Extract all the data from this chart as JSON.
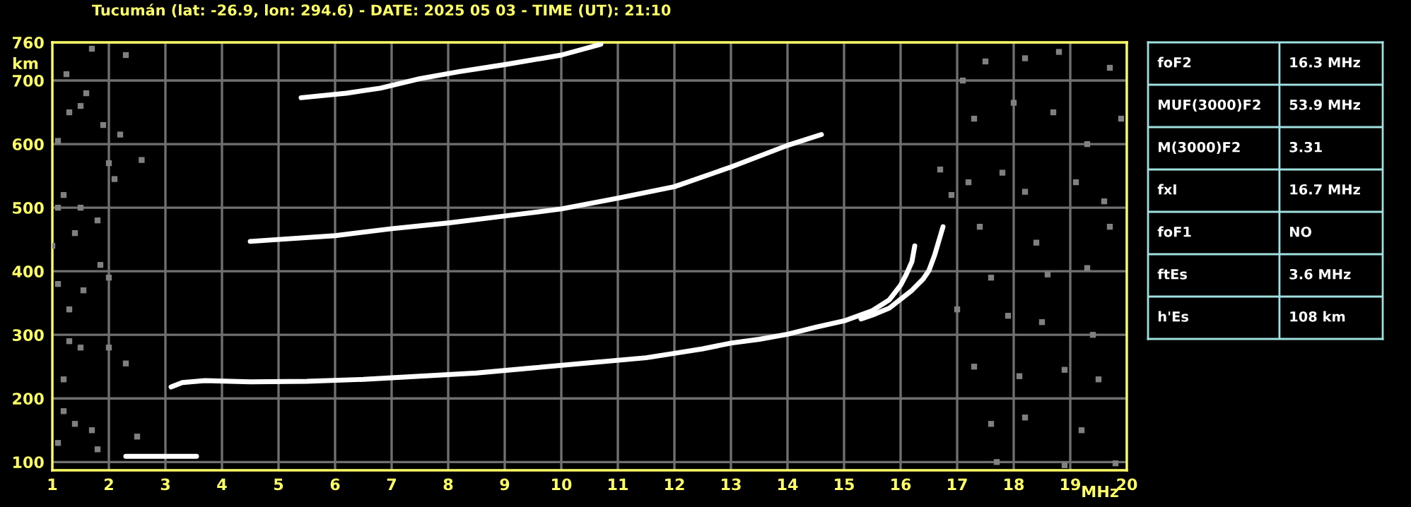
{
  "chart_data": [
    {
      "type": "scatter",
      "title": "Tucumán (lat: -26.9, lon: 294.6) - DATE: 2025 05 03 - TIME (UT): 21:10",
      "xlabel": "MHz",
      "ylabel": "km",
      "xlim": [
        1,
        20
      ],
      "xticks": [
        1,
        2,
        3,
        4,
        5,
        6,
        7,
        8,
        9,
        10,
        11,
        12,
        13,
        14,
        15,
        16,
        17,
        18,
        19,
        20
      ],
      "ylim": [
        87,
        760
      ],
      "yticks": [
        100,
        200,
        300,
        400,
        500,
        600,
        700,
        760
      ],
      "grid": true,
      "legend": false,
      "series": [
        {
          "type": "line",
          "marker": "none",
          "color": "#ffffff",
          "x": [
            2.3,
            2.6,
            2.9,
            3.2,
            3.55
          ],
          "values": [
            109,
            109,
            109,
            109,
            109
          ]
        },
        {
          "type": "line",
          "marker": "none",
          "color": "#ffffff",
          "x": [
            3.1,
            3.3,
            3.7,
            4.5,
            5.5,
            6.5,
            7.5,
            8.5,
            9.5,
            10.5,
            11.5,
            12.0,
            12.5,
            13.0,
            13.5,
            14.0,
            14.5,
            15.0,
            15.5,
            15.8,
            16.0,
            16.1,
            16.2,
            16.25
          ],
          "values": [
            218,
            225,
            228,
            226,
            227,
            230,
            235,
            240,
            248,
            256,
            264,
            271,
            278,
            287,
            293,
            301,
            312,
            322,
            338,
            355,
            378,
            395,
            415,
            440
          ]
        },
        {
          "type": "line",
          "marker": "none",
          "color": "#ffffff",
          "x": [
            15.3,
            15.5,
            15.8,
            16.0,
            16.2,
            16.4,
            16.5,
            16.6,
            16.7,
            16.75
          ],
          "values": [
            325,
            331,
            342,
            356,
            370,
            388,
            401,
            425,
            455,
            470
          ]
        },
        {
          "type": "line",
          "marker": "none",
          "color": "#ffffff",
          "x": [
            4.5,
            5.0,
            6.0,
            7.0,
            8.0,
            9.0,
            10.0,
            11.0,
            12.0,
            13.0,
            14.0,
            14.6
          ],
          "values": [
            447,
            450,
            456,
            467,
            476,
            487,
            498,
            515,
            533,
            564,
            598,
            615
          ]
        },
        {
          "type": "line",
          "marker": "none",
          "color": "#ffffff",
          "x": [
            5.4,
            6.2,
            6.8,
            7.5,
            8.2,
            9.0,
            10.0,
            10.7
          ],
          "values": [
            673,
            680,
            688,
            703,
            714,
            725,
            740,
            757
          ]
        },
        {
          "marker": "square",
          "color": "#808080",
          "x": [
            1.1,
            1.25,
            1.3,
            1.5,
            1.6,
            1.1,
            1.2,
            1.4,
            1.5,
            1.8,
            1.85,
            1.1,
            1.3,
            1.55,
            1.2,
            1.2,
            1.4,
            1.7,
            1.1,
            1.8,
            2.0,
            2.1,
            2.0,
            2.3,
            2.5,
            1.9,
            2.2,
            1.7,
            2.3,
            1.3,
            1.5,
            1.0,
            2.0,
            2.58,
            17.1,
            17.5,
            18.2,
            18.8,
            19.7,
            17.3,
            18.0,
            18.7,
            19.3,
            19.9,
            17.2,
            17.8,
            18.2,
            19.1,
            19.6,
            17.4,
            18.4,
            19.7,
            17.6,
            18.6,
            19.3,
            17.0,
            17.9,
            18.5,
            19.4,
            17.3,
            18.1,
            18.9,
            19.5,
            17.6,
            18.2,
            19.2,
            17.7,
            18.9,
            19.8,
            16.7,
            16.9
          ],
          "values": [
            605,
            710,
            650,
            660,
            680,
            500,
            520,
            460,
            500,
            480,
            410,
            380,
            340,
            370,
            230,
            180,
            160,
            150,
            130,
            120,
            570,
            545,
            390,
            255,
            140,
            630,
            615,
            750,
            740,
            290,
            280,
            440,
            280,
            575,
            700,
            730,
            735,
            745,
            720,
            640,
            665,
            650,
            600,
            640,
            540,
            555,
            525,
            540,
            510,
            470,
            445,
            470,
            390,
            395,
            405,
            340,
            330,
            320,
            300,
            250,
            235,
            245,
            230,
            160,
            170,
            150,
            100,
            95,
            98,
            560,
            520
          ]
        }
      ]
    },
    {
      "type": "other",
      "annotations": [
        "foF2",
        "16.3 MHz",
        "MUF(3000)F2",
        "53.9 MHz",
        "M(3000)F2",
        "3.31",
        "fxI",
        "16.7 MHz",
        "foF1",
        "NO",
        "ftEs",
        "3.6 MHz",
        "h'Es",
        "108 km"
      ]
    }
  ]
}
